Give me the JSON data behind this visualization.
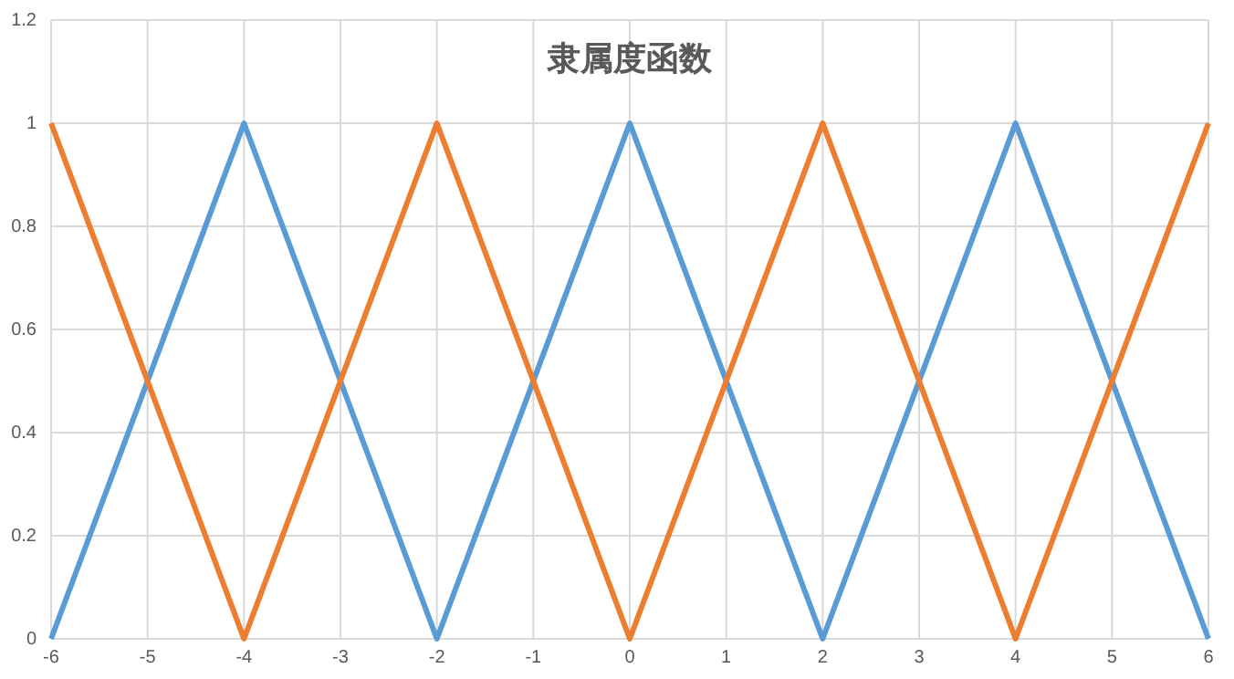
{
  "chart_data": {
    "type": "line",
    "title": "隶属度函数",
    "x": [
      -6,
      -4,
      -2,
      0,
      2,
      4,
      6
    ],
    "series": [
      {
        "color": "#5b9bd5",
        "values": [
          0,
          1,
          0,
          1,
          0,
          1,
          0
        ]
      },
      {
        "color": "#ed7d31",
        "values": [
          1,
          0,
          1,
          0,
          1,
          0,
          1
        ]
      }
    ],
    "xlim": [
      -6,
      6
    ],
    "xticks": [
      -6,
      -5,
      -4,
      -3,
      -2,
      -1,
      0,
      1,
      2,
      3,
      4,
      5,
      6
    ],
    "ylim": [
      0,
      1.2
    ],
    "yticks": [
      0,
      0.2,
      0.4,
      0.6,
      0.8,
      1,
      1.2
    ],
    "grid": true,
    "marker": "none",
    "line_style": "solid"
  }
}
